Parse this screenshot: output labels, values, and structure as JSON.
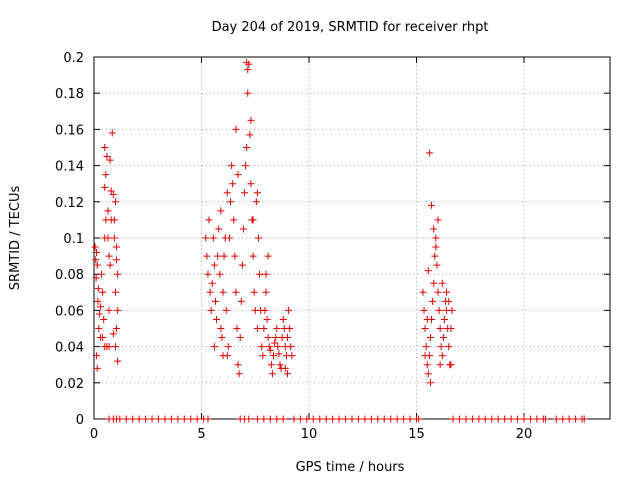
{
  "chart_data": {
    "type": "scatter",
    "title": "Day 204 of 2019, SRMTID for receiver rhpt",
    "xlabel": "GPS time / hours",
    "ylabel": "SRMTID / TECUs",
    "xlim": [
      0,
      24
    ],
    "ylim": [
      0,
      0.2
    ],
    "grid": true,
    "x_ticks": [
      0,
      5,
      10,
      15,
      20
    ],
    "y_ticks": [
      0,
      0.02,
      0.04,
      0.06,
      0.08,
      0.1,
      0.12,
      0.14,
      0.16,
      0.18,
      0.2
    ],
    "x_tick_labels": [
      "0",
      "5",
      "10",
      "15",
      "20"
    ],
    "y_tick_labels": [
      "0",
      "0.02",
      "0.04",
      "0.06",
      "0.08",
      "0.1",
      "0.12",
      "0.14",
      "0.16",
      "0.18",
      "0.2"
    ],
    "marker": "+",
    "color": "#e00000",
    "series": [
      {
        "name": "SRMTID",
        "points": [
          [
            0.05,
            0.095
          ],
          [
            0.08,
            0.088
          ],
          [
            0.12,
            0.092
          ],
          [
            0.15,
            0.085
          ],
          [
            0.1,
            0.078
          ],
          [
            0.2,
            0.072
          ],
          [
            0.18,
            0.065
          ],
          [
            0.25,
            0.058
          ],
          [
            0.22,
            0.05
          ],
          [
            0.3,
            0.045
          ],
          [
            0.12,
            0.035
          ],
          [
            0.15,
            0.028
          ],
          [
            0.3,
            0.062
          ],
          [
            0.35,
            0.08
          ],
          [
            0.4,
            0.07
          ],
          [
            0.45,
            0.055
          ],
          [
            0.4,
            0.045
          ],
          [
            0.5,
            0.04
          ],
          [
            0.5,
            0.1
          ],
          [
            0.55,
            0.11
          ],
          [
            0.5,
            0.128
          ],
          [
            0.55,
            0.135
          ],
          [
            0.5,
            0.15
          ],
          [
            0.6,
            0.145
          ],
          [
            0.65,
            0.1
          ],
          [
            0.7,
            0.09
          ],
          [
            0.75,
            0.085
          ],
          [
            0.7,
            0.06
          ],
          [
            0.8,
            0.11
          ],
          [
            0.8,
            0.126
          ],
          [
            0.75,
            0.143
          ],
          [
            0.85,
            0.158
          ],
          [
            0.9,
            0.124
          ],
          [
            0.95,
            0.11
          ],
          [
            1.0,
            0.12
          ],
          [
            0.95,
            0.1
          ],
          [
            1.05,
            0.095
          ],
          [
            1.05,
            0.088
          ],
          [
            1.1,
            0.08
          ],
          [
            1.0,
            0.07
          ],
          [
            1.1,
            0.06
          ],
          [
            1.05,
            0.05
          ],
          [
            1.0,
            0.04
          ],
          [
            1.1,
            0.032
          ],
          [
            0.65,
            0.115
          ],
          [
            0.6,
            0.04
          ],
          [
            0.7,
            0.04
          ],
          [
            0.9,
            0.047
          ],
          [
            5.2,
            0.1
          ],
          [
            5.25,
            0.09
          ],
          [
            5.3,
            0.08
          ],
          [
            5.35,
            0.11
          ],
          [
            5.4,
            0.07
          ],
          [
            5.45,
            0.06
          ],
          [
            5.5,
            0.075
          ],
          [
            5.55,
            0.1
          ],
          [
            5.6,
            0.085
          ],
          [
            5.65,
            0.065
          ],
          [
            5.7,
            0.055
          ],
          [
            5.75,
            0.09
          ],
          [
            5.8,
            0.105
          ],
          [
            5.85,
            0.08
          ],
          [
            5.9,
            0.05
          ],
          [
            5.95,
            0.045
          ],
          [
            6.0,
            0.07
          ],
          [
            6.05,
            0.09
          ],
          [
            6.1,
            0.1
          ],
          [
            6.15,
            0.06
          ],
          [
            6.2,
            0.035
          ],
          [
            6.25,
            0.04
          ],
          [
            6.3,
            0.1
          ],
          [
            6.35,
            0.12
          ],
          [
            6.4,
            0.14
          ],
          [
            6.45,
            0.13
          ],
          [
            6.5,
            0.11
          ],
          [
            6.55,
            0.09
          ],
          [
            6.6,
            0.07
          ],
          [
            6.65,
            0.05
          ],
          [
            6.7,
            0.03
          ],
          [
            6.75,
            0.025
          ],
          [
            6.8,
            0.045
          ],
          [
            6.85,
            0.065
          ],
          [
            6.9,
            0.085
          ],
          [
            6.95,
            0.105
          ],
          [
            7.0,
            0.125
          ],
          [
            7.05,
            0.14
          ],
          [
            7.1,
            0.15
          ],
          [
            7.15,
            0.18
          ],
          [
            7.2,
            0.196
          ],
          [
            7.1,
            0.197
          ],
          [
            7.15,
            0.193
          ],
          [
            7.25,
            0.157
          ],
          [
            7.3,
            0.13
          ],
          [
            7.35,
            0.11
          ],
          [
            7.4,
            0.09
          ],
          [
            7.45,
            0.07
          ],
          [
            7.5,
            0.06
          ],
          [
            7.55,
            0.12
          ],
          [
            7.6,
            0.125
          ],
          [
            7.65,
            0.1
          ],
          [
            7.7,
            0.08
          ],
          [
            7.75,
            0.06
          ],
          [
            7.8,
            0.04
          ],
          [
            7.85,
            0.035
          ],
          [
            7.9,
            0.05
          ],
          [
            7.95,
            0.06
          ],
          [
            8.0,
            0.07
          ],
          [
            8.05,
            0.055
          ],
          [
            8.1,
            0.045
          ],
          [
            8.15,
            0.04
          ],
          [
            8.2,
            0.038
          ],
          [
            8.25,
            0.03
          ],
          [
            8.3,
            0.025
          ],
          [
            8.35,
            0.035
          ],
          [
            8.4,
            0.042
          ],
          [
            8.45,
            0.045
          ],
          [
            8.5,
            0.05
          ],
          [
            8.55,
            0.04
          ],
          [
            8.6,
            0.036
          ],
          [
            8.65,
            0.03
          ],
          [
            8.7,
            0.028
          ],
          [
            8.75,
            0.045
          ],
          [
            8.8,
            0.055
          ],
          [
            8.85,
            0.05
          ],
          [
            8.9,
            0.04
          ],
          [
            8.95,
            0.035
          ],
          [
            9.0,
            0.045
          ],
          [
            9.05,
            0.06
          ],
          [
            9.1,
            0.05
          ],
          [
            9.15,
            0.04
          ],
          [
            9.2,
            0.035
          ],
          [
            6.6,
            0.16
          ],
          [
            6.7,
            0.135
          ],
          [
            6.2,
            0.125
          ],
          [
            5.9,
            0.115
          ],
          [
            7.3,
            0.165
          ],
          [
            7.4,
            0.11
          ],
          [
            8.0,
            0.08
          ],
          [
            8.1,
            0.09
          ],
          [
            5.6,
            0.04
          ],
          [
            6.0,
            0.035
          ],
          [
            7.6,
            0.05
          ],
          [
            8.9,
            0.028
          ],
          [
            9.0,
            0.025
          ],
          [
            15.3,
            0.07
          ],
          [
            15.35,
            0.06
          ],
          [
            15.4,
            0.05
          ],
          [
            15.45,
            0.04
          ],
          [
            15.5,
            0.03
          ],
          [
            15.55,
            0.025
          ],
          [
            15.6,
            0.035
          ],
          [
            15.65,
            0.045
          ],
          [
            15.7,
            0.055
          ],
          [
            15.75,
            0.065
          ],
          [
            15.8,
            0.075
          ],
          [
            15.85,
            0.09
          ],
          [
            15.9,
            0.1
          ],
          [
            15.95,
            0.085
          ],
          [
            16.0,
            0.07
          ],
          [
            16.05,
            0.06
          ],
          [
            16.1,
            0.05
          ],
          [
            16.15,
            0.04
          ],
          [
            16.2,
            0.035
          ],
          [
            16.25,
            0.045
          ],
          [
            16.3,
            0.055
          ],
          [
            16.35,
            0.065
          ],
          [
            16.4,
            0.06
          ],
          [
            16.45,
            0.05
          ],
          [
            16.5,
            0.04
          ],
          [
            16.55,
            0.03
          ],
          [
            16.6,
            0.05
          ],
          [
            16.65,
            0.06
          ],
          [
            15.6,
            0.147
          ],
          [
            15.7,
            0.118
          ],
          [
            15.8,
            0.105
          ],
          [
            15.9,
            0.095
          ],
          [
            16.0,
            0.11
          ],
          [
            15.55,
            0.082
          ],
          [
            15.65,
            0.02
          ],
          [
            16.2,
            0.075
          ],
          [
            16.4,
            0.07
          ],
          [
            15.4,
            0.035
          ],
          [
            15.5,
            0.055
          ],
          [
            16.1,
            0.03
          ],
          [
            16.6,
            0.03
          ],
          [
            16.5,
            0.065
          ]
        ],
        "zero_points": [
          0.7,
          0.9,
          1.05,
          1.2,
          1.5,
          1.8,
          2.1,
          2.4,
          2.7,
          3.0,
          3.3,
          3.6,
          3.9,
          4.2,
          4.5,
          4.8,
          5.1,
          5.3,
          6.8,
          7.0,
          7.2,
          7.6,
          7.9,
          8.2,
          8.5,
          8.8,
          9.3,
          9.6,
          9.9,
          10.2,
          10.5,
          10.8,
          11.1,
          11.4,
          11.7,
          12.0,
          12.3,
          12.6,
          12.9,
          13.2,
          13.5,
          13.8,
          14.1,
          14.4,
          14.7,
          15.0,
          15.1,
          16.7,
          17.0,
          17.3,
          17.6,
          17.9,
          18.2,
          18.5,
          18.8,
          19.1,
          19.4,
          19.7,
          20.0,
          20.3,
          20.6,
          20.9,
          21.0,
          21.5,
          21.8,
          22.1,
          22.4,
          22.7,
          22.8
        ]
      }
    ]
  }
}
